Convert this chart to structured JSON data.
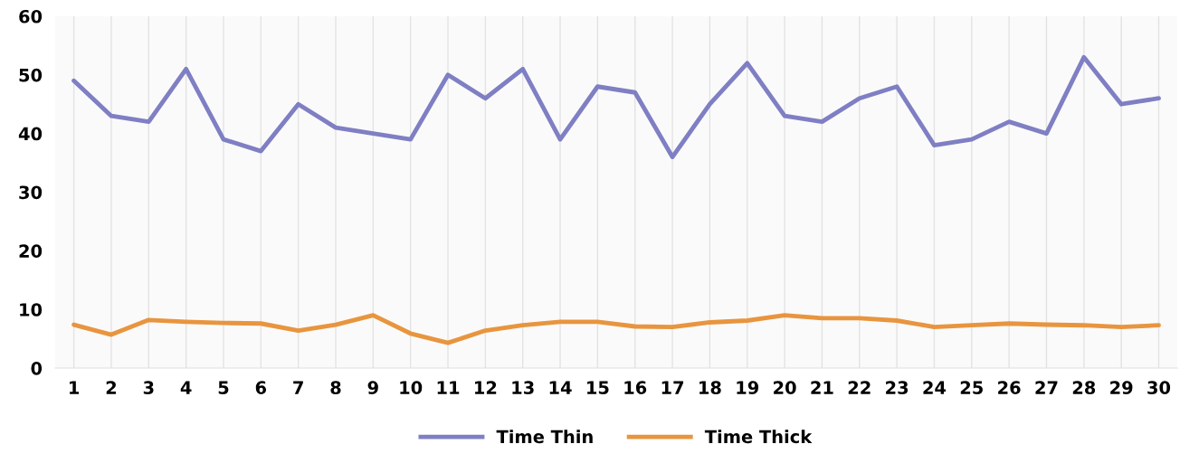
{
  "chart_data": {
    "type": "line",
    "categories": [
      "1",
      "2",
      "3",
      "4",
      "5",
      "6",
      "7",
      "8",
      "9",
      "10",
      "11",
      "12",
      "13",
      "14",
      "15",
      "16",
      "17",
      "18",
      "19",
      "20",
      "21",
      "22",
      "23",
      "24",
      "25",
      "26",
      "27",
      "28",
      "29",
      "30"
    ],
    "series": [
      {
        "name": "Time Thin",
        "color": "#7f7fc4",
        "values": [
          49,
          43,
          42,
          51,
          39,
          37,
          45,
          41,
          40,
          39,
          50,
          46,
          51,
          39,
          48,
          47,
          36,
          45,
          52,
          43,
          42,
          46,
          48,
          38,
          39,
          42,
          40,
          53,
          45,
          46
        ]
      },
      {
        "name": "Time Thick",
        "color": "#e8953f",
        "values": [
          7.4,
          5.7,
          8.2,
          7.9,
          7.7,
          7.6,
          6.4,
          7.4,
          9.0,
          5.9,
          4.3,
          6.4,
          7.3,
          7.9,
          7.9,
          7.1,
          7.0,
          7.8,
          8.1,
          9.0,
          8.5,
          8.5,
          8.1,
          7.0,
          7.3,
          7.6,
          7.4,
          7.3,
          7.0,
          7.3
        ]
      }
    ],
    "ylim": [
      0,
      60
    ],
    "yticks": [
      0,
      10,
      20,
      30,
      40,
      50,
      60
    ],
    "grid": "x",
    "legend": "bottom",
    "marker": "none",
    "line_style": "solid"
  }
}
